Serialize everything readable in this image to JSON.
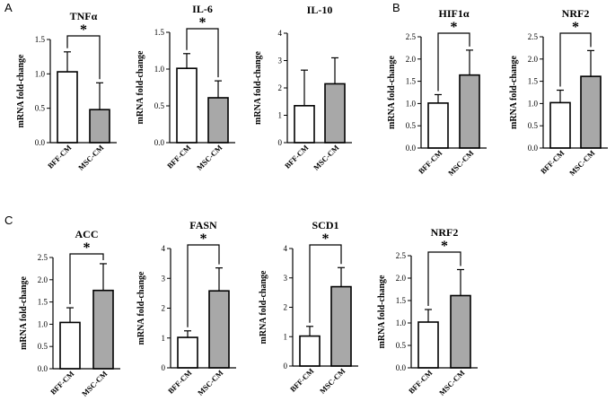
{
  "panel_labels": [
    "A",
    "B",
    "C"
  ],
  "axis_label": "mRNA fold-change",
  "categories": [
    "BFF-CM",
    "MSC-CM"
  ],
  "bar_colors": [
    "#ffffff",
    "#a8a8a8"
  ],
  "significance_marker": "*",
  "chart_data": [
    {
      "type": "bar",
      "panel": "A",
      "title": "TNFα",
      "categories": [
        "BFF-CM",
        "MSC-CM"
      ],
      "values": [
        1.03,
        0.48
      ],
      "errors": [
        0.29,
        0.39
      ],
      "ylabel": "mRNA fold-change",
      "ylim": [
        0,
        1.5
      ],
      "yticks": [
        0.0,
        0.5,
        1.0,
        1.5
      ],
      "tick_decimals": 1,
      "significant": true
    },
    {
      "type": "bar",
      "panel": "A",
      "title": "IL-6",
      "categories": [
        "BFF-CM",
        "MSC-CM"
      ],
      "values": [
        1.01,
        0.61
      ],
      "errors": [
        0.2,
        0.23
      ],
      "ylabel": "mRNA fold-change",
      "ylim": [
        0,
        1.5
      ],
      "yticks": [
        0.0,
        0.5,
        1.0,
        1.5
      ],
      "tick_decimals": 1,
      "significant": true
    },
    {
      "type": "bar",
      "panel": "A",
      "title": "IL-10",
      "categories": [
        "BFF-CM",
        "MSC-CM"
      ],
      "values": [
        1.35,
        2.15
      ],
      "errors": [
        1.3,
        0.95
      ],
      "ylabel": "mRNA fold-change",
      "ylim": [
        0,
        4
      ],
      "yticks": [
        0,
        1,
        2,
        3,
        4
      ],
      "tick_decimals": 0,
      "significant": false
    },
    {
      "type": "bar",
      "panel": "B",
      "title": "HIF1α",
      "categories": [
        "BFF-CM",
        "MSC-CM"
      ],
      "values": [
        1.01,
        1.64
      ],
      "errors": [
        0.19,
        0.56
      ],
      "ylabel": "mRNA fold-change",
      "ylim": [
        0,
        2.5
      ],
      "yticks": [
        0.0,
        0.5,
        1.0,
        1.5,
        2.0,
        2.5
      ],
      "tick_decimals": 1,
      "significant": true
    },
    {
      "type": "bar",
      "panel": "B",
      "title": "NRF2",
      "categories": [
        "BFF-CM",
        "MSC-CM"
      ],
      "values": [
        1.02,
        1.61
      ],
      "errors": [
        0.28,
        0.58
      ],
      "ylabel": "mRNA fold-change",
      "ylim": [
        0,
        2.5
      ],
      "yticks": [
        0.0,
        0.5,
        1.0,
        1.5,
        2.0,
        2.5
      ],
      "tick_decimals": 1,
      "significant": true
    },
    {
      "type": "bar",
      "panel": "C",
      "title": "ACC",
      "categories": [
        "BFF-CM",
        "MSC-CM"
      ],
      "values": [
        1.04,
        1.76
      ],
      "errors": [
        0.33,
        0.6
      ],
      "ylabel": "mRNA fold-change",
      "ylim": [
        0,
        2.5
      ],
      "yticks": [
        0.0,
        0.5,
        1.0,
        1.5,
        2.0,
        2.5
      ],
      "tick_decimals": 1,
      "significant": true
    },
    {
      "type": "bar",
      "panel": "C",
      "title": "FASN",
      "categories": [
        "BFF-CM",
        "MSC-CM"
      ],
      "values": [
        1.02,
        2.58
      ],
      "errors": [
        0.22,
        0.77
      ],
      "ylabel": "mRNA fold-change",
      "ylim": [
        0,
        4
      ],
      "yticks": [
        0,
        1,
        2,
        3,
        4
      ],
      "tick_decimals": 0,
      "significant": true
    },
    {
      "type": "bar",
      "panel": "C",
      "title": "SCD1",
      "categories": [
        "BFF-CM",
        "MSC-CM"
      ],
      "values": [
        1.02,
        2.7
      ],
      "errors": [
        0.33,
        0.65
      ],
      "ylabel": "mRNA fold-change",
      "ylim": [
        0,
        4
      ],
      "yticks": [
        0,
        1,
        2,
        3,
        4
      ],
      "tick_decimals": 0,
      "significant": true
    },
    {
      "type": "bar",
      "panel": "C",
      "title": "NRF2",
      "categories": [
        "BFF-CM",
        "MSC-CM"
      ],
      "values": [
        1.02,
        1.61
      ],
      "errors": [
        0.28,
        0.58
      ],
      "ylabel": "mRNA fold-change",
      "ylim": [
        0,
        2.5
      ],
      "yticks": [
        0.0,
        0.5,
        1.0,
        1.5,
        2.0,
        2.5
      ],
      "tick_decimals": 1,
      "significant": true
    }
  ]
}
